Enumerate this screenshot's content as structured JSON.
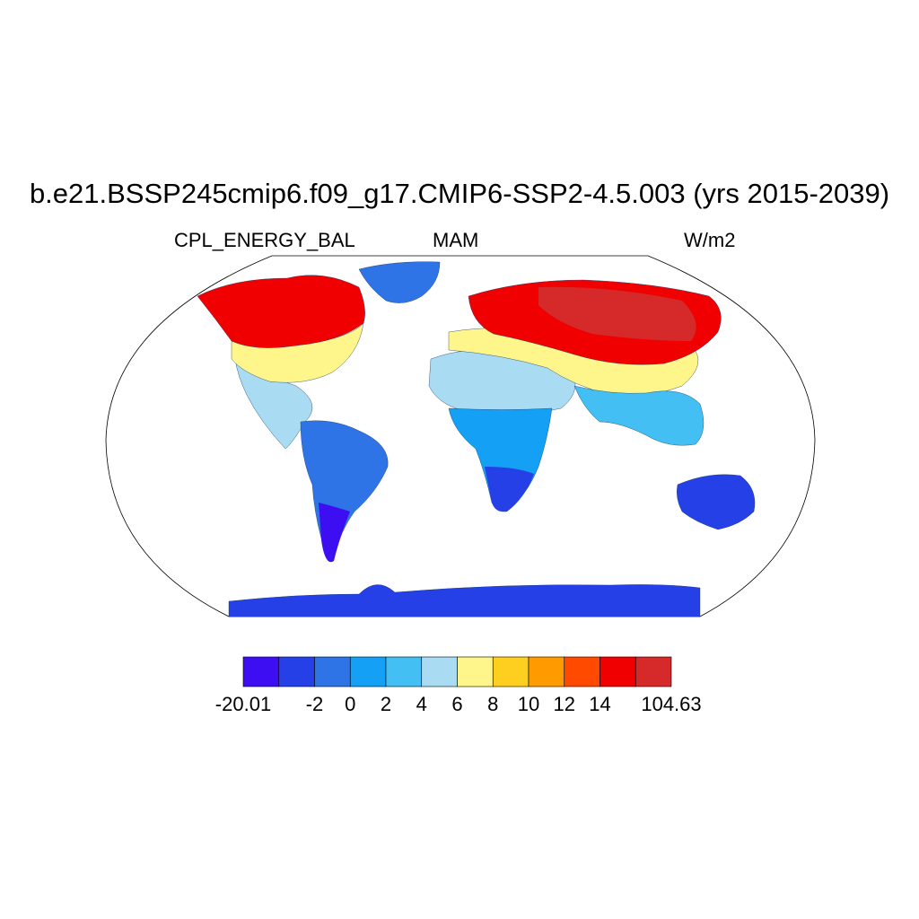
{
  "title": "b.e21.BSSP245cmip6.f09_g17.CMIP6-SSP2-4.5.003 (yrs 2015-2039)",
  "variable": "CPL_ENERGY_BAL",
  "season": "MAM",
  "units": "W/m2",
  "colorbar": {
    "colors": [
      "#3d0ef2",
      "#2540e6",
      "#2f74e6",
      "#14a0f4",
      "#43bff4",
      "#a9dcf2",
      "#fff68b",
      "#ffcf1f",
      "#ff9a00",
      "#ff4a00",
      "#f00000",
      "#d62a2a"
    ],
    "labels": [
      "-20.01",
      "-2",
      "0",
      "2",
      "4",
      "6",
      "8",
      "10",
      "12",
      "14",
      "104.63"
    ],
    "boundaries": [
      -20.01,
      -4,
      -2,
      0,
      2,
      4,
      6,
      8,
      10,
      12,
      14,
      16,
      104.63
    ]
  },
  "map": {
    "projection": "robinson",
    "ocean_color": "#ffffff",
    "regions": [
      {
        "name": "north-america-south",
        "color": "#a9dcf2"
      },
      {
        "name": "north-america-mid",
        "color": "#fff68b"
      },
      {
        "name": "north-america-north",
        "color": "#f00000"
      },
      {
        "name": "greenland",
        "color": "#2f74e6"
      },
      {
        "name": "south-america",
        "color": "#2f74e6"
      },
      {
        "name": "africa-north",
        "color": "#a9dcf2"
      },
      {
        "name": "africa-south",
        "color": "#14a0f4"
      },
      {
        "name": "eurasia-south",
        "color": "#fff68b"
      },
      {
        "name": "eurasia-north",
        "color": "#f00000"
      },
      {
        "name": "south-asia",
        "color": "#43bff4"
      },
      {
        "name": "australia",
        "color": "#2540e6"
      },
      {
        "name": "antarctica",
        "color": "#2540e6"
      }
    ]
  }
}
